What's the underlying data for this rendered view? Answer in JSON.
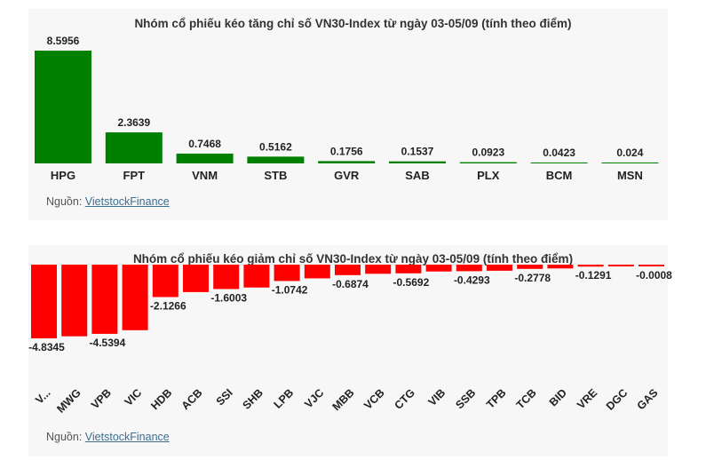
{
  "colors": {
    "up": "#008000",
    "down": "#ff0000",
    "panel": "#f7f7f7"
  },
  "chart_data": [
    {
      "type": "bar",
      "title": "Nhóm cổ phiếu kéo tăng chỉ số VN30-Index từ ngày 03-05/09 (tính theo điểm)",
      "categories": [
        "HPG",
        "FPT",
        "VNM",
        "STB",
        "GVR",
        "SAB",
        "PLX",
        "BCM",
        "MSN"
      ],
      "values": [
        8.5956,
        2.3639,
        0.7468,
        0.5162,
        0.1756,
        0.1537,
        0.0923,
        0.0423,
        0.024
      ],
      "value_labels": [
        "8.5956",
        "2.3639",
        "0.7468",
        "0.5162",
        "0.1756",
        "0.1537",
        "0.0923",
        "0.0423",
        "0.024"
      ],
      "color": "#008000",
      "ylim": [
        0,
        8.5956
      ],
      "grid": false
    },
    {
      "type": "bar",
      "title": "Nhóm cổ phiếu kéo giảm chỉ số VN30-Index từ ngày 03-05/09 (tính theo điểm)",
      "categories": [
        "V...",
        "MWG",
        "VPB",
        "VIC",
        "HDB",
        "ACB",
        "SSI",
        "SHB",
        "LPB",
        "VJC",
        "MBB",
        "VCB",
        "CTG",
        "VIB",
        "SSB",
        "TPB",
        "TCB",
        "BID",
        "VRE",
        "DGC",
        "GAS"
      ],
      "values": [
        -4.8345,
        -4.7,
        -4.5394,
        -4.3,
        -2.1266,
        -1.8,
        -1.6003,
        -1.5,
        -1.0742,
        -0.9,
        -0.6874,
        -0.6,
        -0.5692,
        -0.45,
        -0.4293,
        -0.4,
        -0.2778,
        -0.25,
        -0.1291,
        -0.08,
        -0.0008
      ],
      "value_labels": [
        "-4.8345",
        "",
        "-4.5394",
        "",
        "-2.1266",
        "",
        "-1.6003",
        "",
        "-1.0742",
        "",
        "-0.6874",
        "",
        "-0.5692",
        "",
        "-0.4293",
        "",
        "-0.2778",
        "",
        "-0.1291",
        "",
        "-0.0008"
      ],
      "color": "#ff0000",
      "ylim": [
        -4.8345,
        0
      ],
      "grid": false
    }
  ],
  "sources": [
    {
      "prefix": "Nguồn: ",
      "link": "VietstockFinance"
    },
    {
      "prefix": "Nguồn: ",
      "link": "VietstockFinance"
    }
  ]
}
